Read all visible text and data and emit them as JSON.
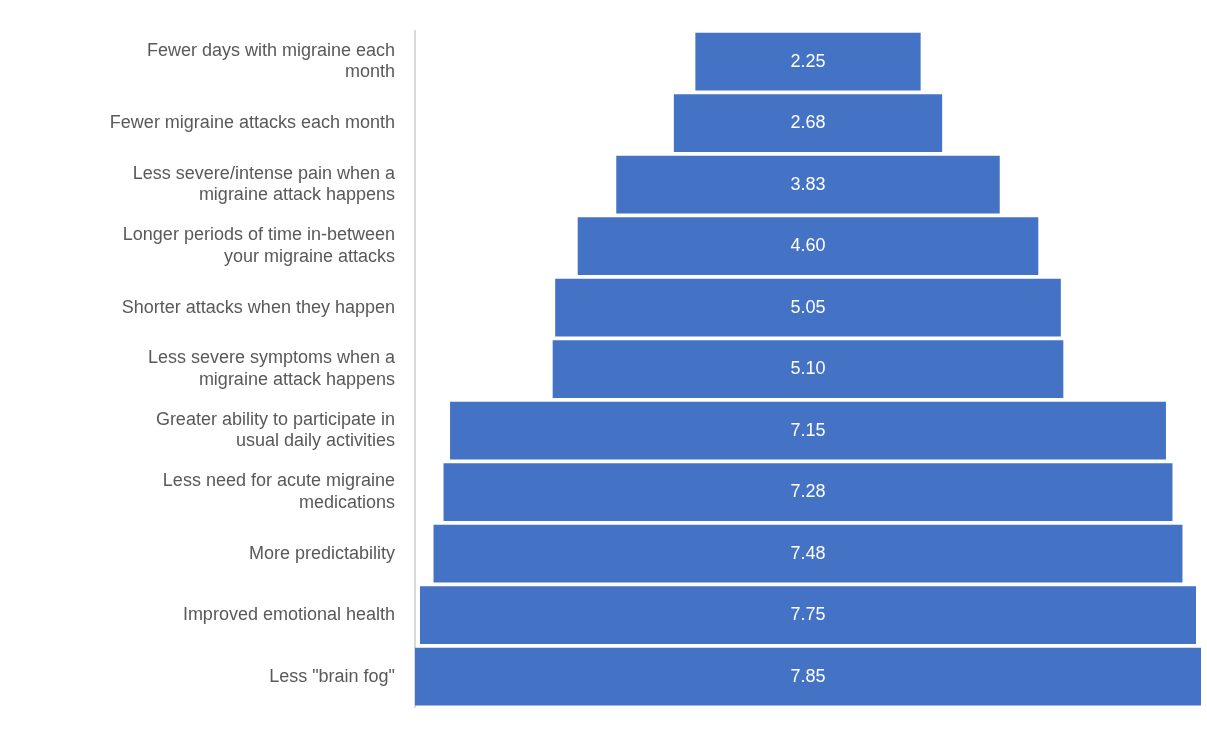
{
  "chart_data": {
    "type": "other",
    "categories": [
      "Fewer days with migraine each month",
      "Fewer migraine attacks each month",
      "Less severe/intense pain when a migraine attack happens",
      "Longer periods of time in-between your migraine attacks",
      "Shorter attacks when they happen",
      "Less severe symptoms when a migraine attack happens",
      "Greater ability to participate in usual daily activities",
      "Less need for acute migraine medications",
      "More predictability",
      "Improved emotional health",
      "Less \"brain fog\""
    ],
    "values": [
      2.25,
      2.68,
      3.83,
      4.6,
      5.05,
      5.1,
      7.15,
      7.28,
      7.48,
      7.75,
      7.85
    ],
    "value_labels": [
      "2.25",
      "2.68",
      "3.83",
      "4.60",
      "5.05",
      "5.10",
      "7.15",
      "7.28",
      "7.48",
      "7.75",
      "7.85"
    ],
    "color": "#4472c4"
  }
}
